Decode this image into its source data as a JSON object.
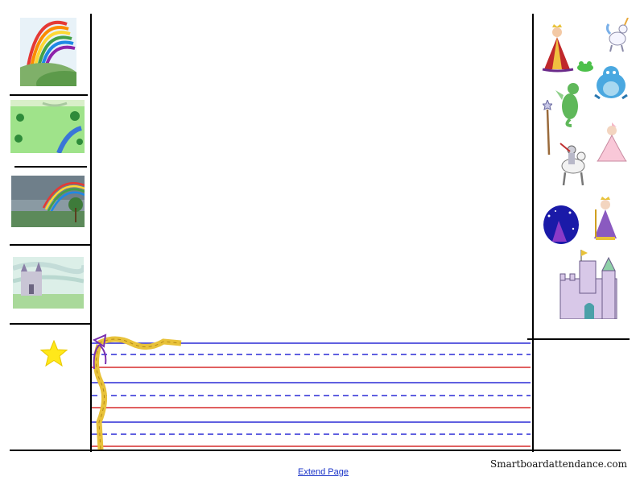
{
  "footer": {
    "extend_link": "Extend Page",
    "site_name": "Smartboardattendance.com"
  },
  "left_panel": {
    "thumbnails": [
      {
        "icon": "rainbow-hills-image"
      },
      {
        "icon": "meadow-map-image"
      },
      {
        "icon": "rainbow-tree-image"
      },
      {
        "icon": "castle-landscape-image"
      }
    ],
    "star_icon": "star-icon"
  },
  "right_panel": {
    "stickers": [
      {
        "icon": "queen-clipart"
      },
      {
        "icon": "unicorn-clipart"
      },
      {
        "icon": "frog-clipart"
      },
      {
        "icon": "blue-dragon-clipart"
      },
      {
        "icon": "green-dragon-clipart"
      },
      {
        "icon": "magic-wand-clipart"
      },
      {
        "icon": "knight-horse-clipart"
      },
      {
        "icon": "princess-clipart"
      },
      {
        "icon": "night-sky-clipart"
      },
      {
        "icon": "king-clipart"
      },
      {
        "icon": "castle-clipart"
      }
    ]
  },
  "colors": {
    "line_blue": "#2b2bd6",
    "line_red": "#d62b2b",
    "star": "#ffe81a",
    "link": "#1a33c8"
  }
}
